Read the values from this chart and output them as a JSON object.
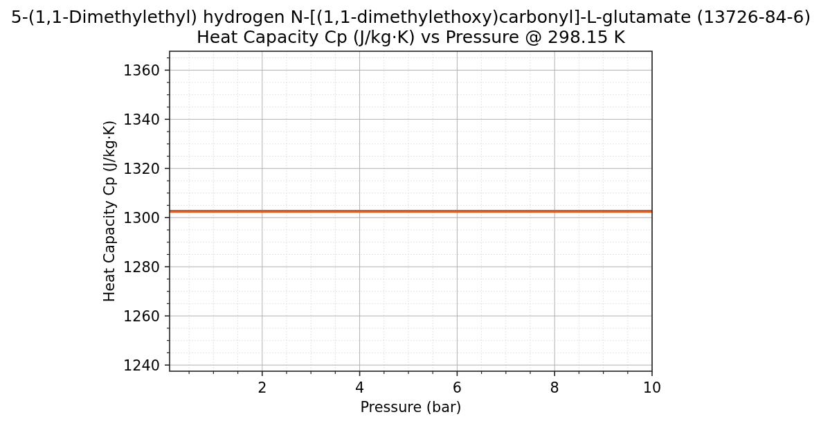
{
  "chart_data": {
    "type": "line",
    "title": "5-(1,1-Dimethylethyl) hydrogen N-[(1,1-dimethylethoxy)carbonyl]-L-glutamate (13726-84-6)",
    "subtitle": "Heat Capacity Cp (J/kg·K) vs Pressure @ 298.15 K",
    "xlabel": "Pressure (bar)",
    "ylabel": "Heat Capacity Cp (J/kg·K)",
    "x": [
      0.1,
      10
    ],
    "values": [
      1302.6,
      1302.6
    ],
    "color": "#e05a22",
    "xlim": [
      0.1,
      10
    ],
    "xticks": [
      {
        "value": 0.5,
        "label": null
      },
      {
        "value": 1,
        "label": null
      },
      {
        "value": 1.5,
        "label": null
      },
      2,
      {
        "value": 2.5,
        "label": null
      },
      {
        "value": 3,
        "label": null
      },
      {
        "value": 3.5,
        "label": null
      },
      4,
      {
        "value": 4.5,
        "label": null
      },
      {
        "value": 5,
        "label": null
      },
      {
        "value": 5.5,
        "label": null
      },
      6,
      {
        "value": 6.5,
        "label": null
      },
      {
        "value": 7,
        "label": null
      },
      {
        "value": 7.5,
        "label": null
      },
      8,
      {
        "value": 8.5,
        "label": null
      },
      {
        "value": 9,
        "label": null
      },
      {
        "value": 9.5,
        "label": null
      },
      10
    ],
    "ylim": [
      1237.5,
      1367.7
    ],
    "yticks": [
      1240,
      {
        "value": 1245,
        "label": null
      },
      {
        "value": 1250,
        "label": null
      },
      {
        "value": 1255,
        "label": null
      },
      1260,
      {
        "value": 1265,
        "label": null
      },
      {
        "value": 1270,
        "label": null
      },
      {
        "value": 1275,
        "label": null
      },
      1280,
      {
        "value": 1285,
        "label": null
      },
      {
        "value": 1290,
        "label": null
      },
      {
        "value": 1295,
        "label": null
      },
      1300,
      {
        "value": 1305,
        "label": null
      },
      {
        "value": 1310,
        "label": null
      },
      {
        "value": 1315,
        "label": null
      },
      1320,
      {
        "value": 1325,
        "label": null
      },
      {
        "value": 1330,
        "label": null
      },
      {
        "value": 1335,
        "label": null
      },
      1340,
      {
        "value": 1345,
        "label": null
      },
      {
        "value": 1350,
        "label": null
      },
      {
        "value": 1355,
        "label": null
      },
      1360,
      {
        "value": 1365,
        "label": null
      }
    ],
    "grid": true
  }
}
